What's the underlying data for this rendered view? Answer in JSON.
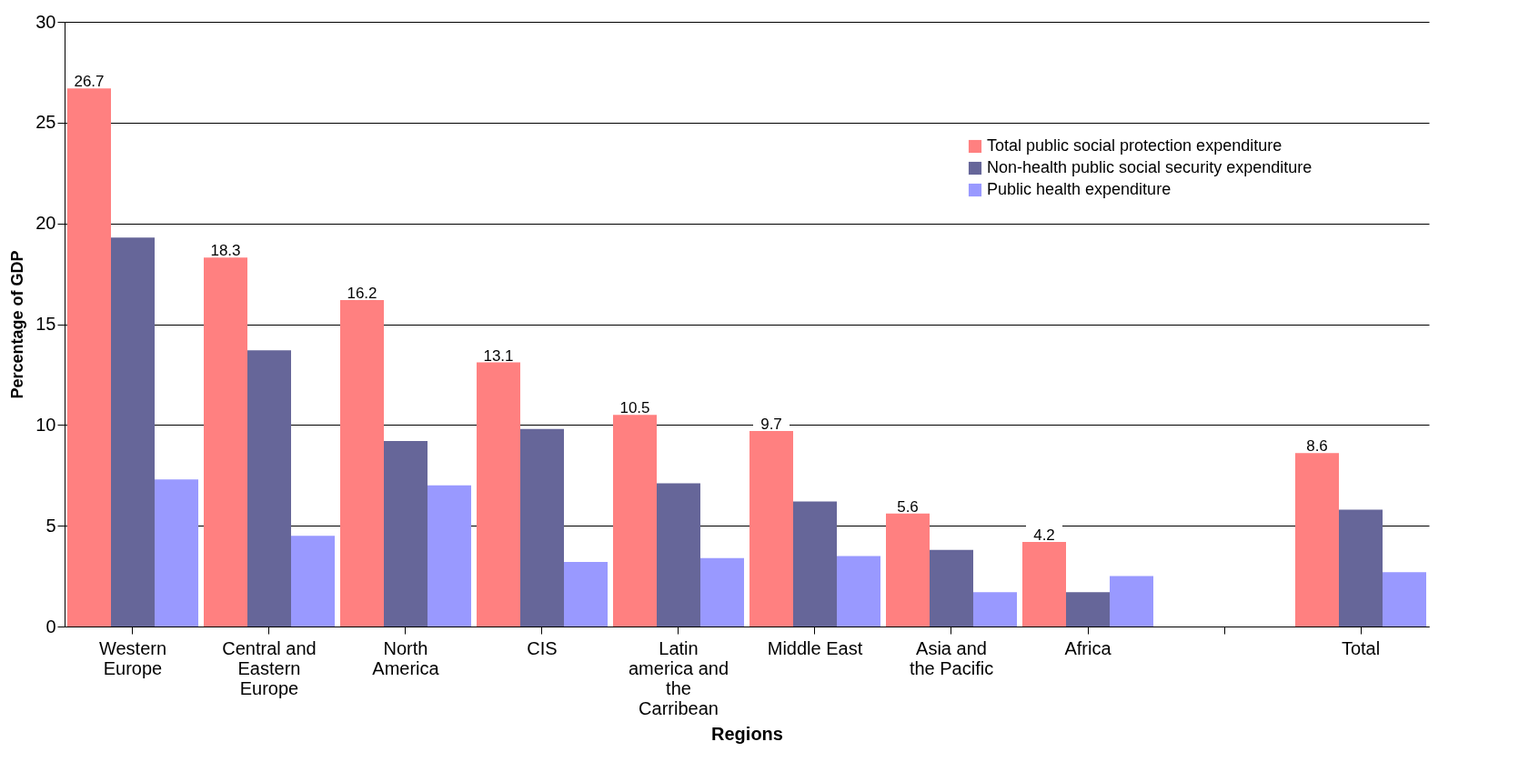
{
  "chart_data": {
    "type": "bar",
    "xlabel": "Regions",
    "ylabel": "Percentage of GDP",
    "categories": [
      "Western Europe",
      "Central and Eastern Europe",
      "North America",
      "CIS",
      "Latin america and the Carribean",
      "Middle East",
      "Asia and the Pacific",
      "Africa",
      null,
      "Total"
    ],
    "series": [
      {
        "name": "Total public social protection expenditure",
        "color": "#ff8080",
        "values": [
          26.7,
          18.3,
          16.2,
          13.1,
          10.5,
          9.7,
          5.6,
          4.2,
          null,
          8.6
        ],
        "value_labels": [
          "26.7",
          "18.3",
          "16.2",
          "13.1",
          "10.5",
          "9.7",
          "5.6",
          "4.2",
          null,
          "8.6"
        ]
      },
      {
        "name": "Non-health public social security expenditure",
        "color": "#666699",
        "values": [
          19.3,
          13.7,
          9.2,
          9.8,
          7.1,
          6.2,
          3.8,
          1.7,
          null,
          5.8
        ]
      },
      {
        "name": "Public health expenditure",
        "color": "#9999ff",
        "values": [
          7.3,
          4.5,
          7.0,
          3.2,
          3.4,
          3.5,
          1.7,
          2.5,
          null,
          2.7
        ]
      }
    ],
    "ylim": [
      0,
      30
    ],
    "yticks": [
      0,
      5,
      10,
      15,
      20,
      25,
      30
    ],
    "grid": "y",
    "legend": "top right"
  }
}
